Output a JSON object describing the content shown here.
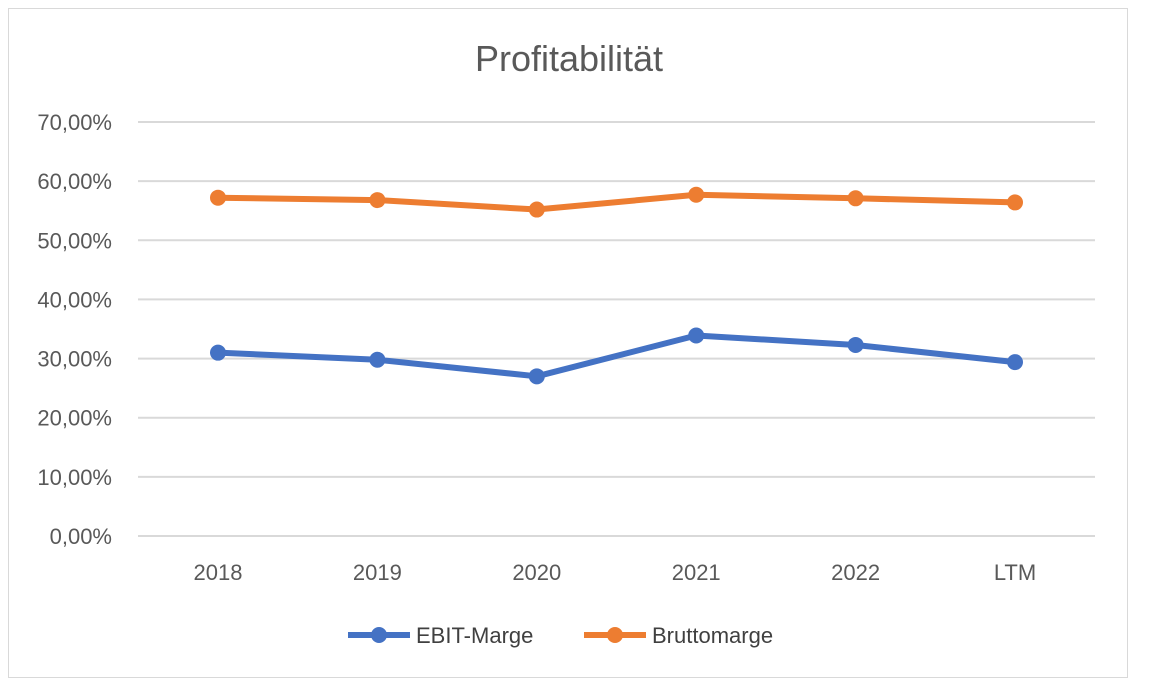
{
  "chart_data": {
    "type": "line",
    "title": "Profitabilität",
    "xlabel": "",
    "ylabel": "",
    "categories": [
      "2018",
      "2019",
      "2020",
      "2021",
      "2022",
      "LTM"
    ],
    "y_ticks": [
      "0,00%",
      "10,00%",
      "20,00%",
      "30,00%",
      "40,00%",
      "50,00%",
      "60,00%",
      "70,00%"
    ],
    "ylim": [
      0,
      70
    ],
    "grid": true,
    "legend_position": "bottom",
    "series": [
      {
        "name": "EBIT-Marge",
        "color": "#4472c4",
        "values": [
          31.0,
          29.8,
          27.0,
          33.9,
          32.3,
          29.4
        ]
      },
      {
        "name": "Bruttomarge",
        "color": "#ed7d31",
        "values": [
          57.2,
          56.8,
          55.2,
          57.7,
          57.1,
          56.4
        ]
      }
    ]
  }
}
